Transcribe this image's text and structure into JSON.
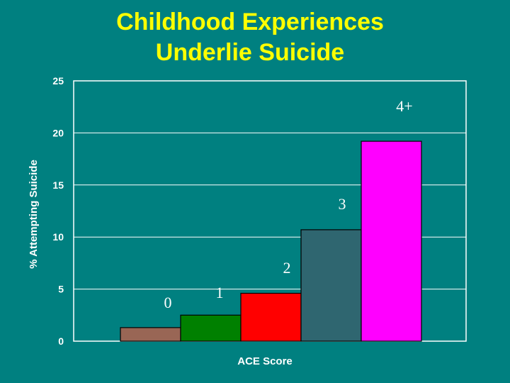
{
  "slide": {
    "title_line1": "Childhood Experiences",
    "title_line2": "Underlie Suicide"
  },
  "colors": {
    "background": "#008080",
    "title": "#ffff00",
    "plot_border": "#ffffff",
    "text": "#ffffff"
  },
  "chart_data": {
    "type": "bar",
    "title": "Childhood Experiences Underlie Suicide",
    "xlabel": "ACE Score",
    "ylabel": "% Attempting Suicide",
    "ylim": [
      0,
      25
    ],
    "yticks": [
      0,
      5,
      10,
      15,
      20,
      25
    ],
    "grid": true,
    "categories": [
      "0",
      "1",
      "2",
      "3",
      "4+"
    ],
    "values": [
      1.3,
      2.5,
      4.6,
      10.7,
      19.2
    ],
    "bar_colors": [
      "#996655",
      "#008000",
      "#ff0000",
      "#2f6670",
      "#ff00ff"
    ],
    "data_labels": [
      "0",
      "1",
      "2",
      "3",
      "4+"
    ]
  }
}
